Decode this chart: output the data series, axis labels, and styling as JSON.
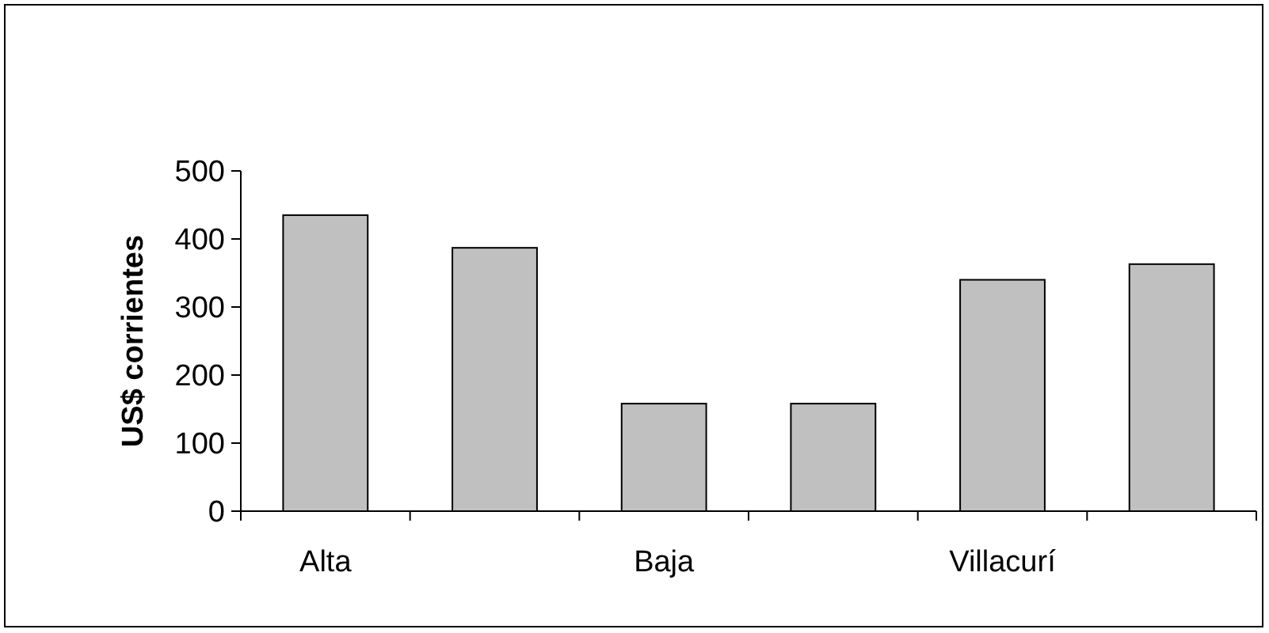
{
  "chart_data": {
    "type": "bar",
    "ylabel": "US$ corrientes",
    "categories": [
      "Alta",
      null,
      "Baja",
      null,
      "Villacurí",
      null
    ],
    "values": [
      435,
      387,
      158,
      158,
      340,
      363
    ],
    "color": "#c0c0c0",
    "ylim": [
      0,
      500
    ],
    "yticks": [
      0,
      100,
      200,
      300,
      400,
      500
    ],
    "grid": false
  }
}
